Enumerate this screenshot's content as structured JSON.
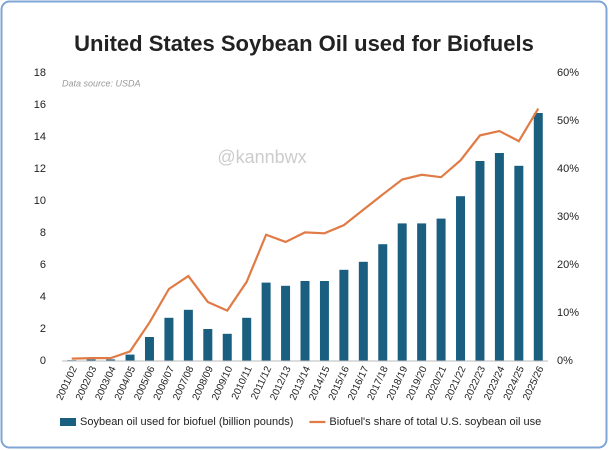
{
  "chart_data": {
    "type": "bar_line",
    "title": "United States Soybean Oil used for Biofuels",
    "source": "Data source: USDA",
    "watermark": "@kannbwx",
    "categories": [
      "2001/02",
      "2002/03",
      "2003/04",
      "2004/05",
      "2005/06",
      "2006/07",
      "2007/08",
      "2008/09",
      "2009/10",
      "2010/11",
      "2011/12",
      "2012/13",
      "2013/14",
      "2014/15",
      "2015/16",
      "2016/17",
      "2017/18",
      "2018/19",
      "2019/20",
      "2020/21",
      "2021/22",
      "2022/23",
      "2023/24",
      "2024/25",
      "2025/26"
    ],
    "series": [
      {
        "name": "Soybean oil used for biofuel (billion pounds)",
        "type": "bar",
        "color": "#1b5f80",
        "values": [
          0.05,
          0.1,
          0.1,
          0.4,
          1.5,
          2.7,
          3.2,
          2.0,
          1.7,
          2.7,
          4.9,
          4.7,
          5.0,
          5.0,
          5.7,
          6.2,
          7.3,
          8.6,
          8.6,
          8.9,
          10.3,
          12.5,
          13.0,
          12.2,
          15.5
        ]
      },
      {
        "name": "Biofuel's share of total U.S. soybean oil use",
        "type": "line",
        "axis": "y2",
        "color": "#e07b45",
        "values": [
          0.5,
          0.6,
          0.6,
          2,
          8,
          15,
          17.7,
          12.3,
          10.5,
          16.5,
          26.3,
          24.8,
          26.8,
          26.6,
          28.3,
          31.5,
          34.7,
          37.8,
          38.8,
          38.3,
          41.8,
          47,
          47.9,
          45.8,
          52.6
        ]
      }
    ],
    "ylim": [
      0,
      18
    ],
    "yticks": [
      0,
      2,
      4,
      6,
      8,
      10,
      12,
      14,
      16,
      18
    ],
    "y2lim": [
      0,
      60
    ],
    "y2ticks": [
      {
        "value": 0,
        "label": "0%"
      },
      {
        "value": 10,
        "label": "10%"
      },
      {
        "value": 20,
        "label": "20%"
      },
      {
        "value": 30,
        "label": "30%"
      },
      {
        "value": 40,
        "label": "40%"
      },
      {
        "value": 50,
        "label": "50%"
      },
      {
        "value": 60,
        "label": "60%"
      }
    ],
    "grid": false,
    "legend": "bottom"
  }
}
